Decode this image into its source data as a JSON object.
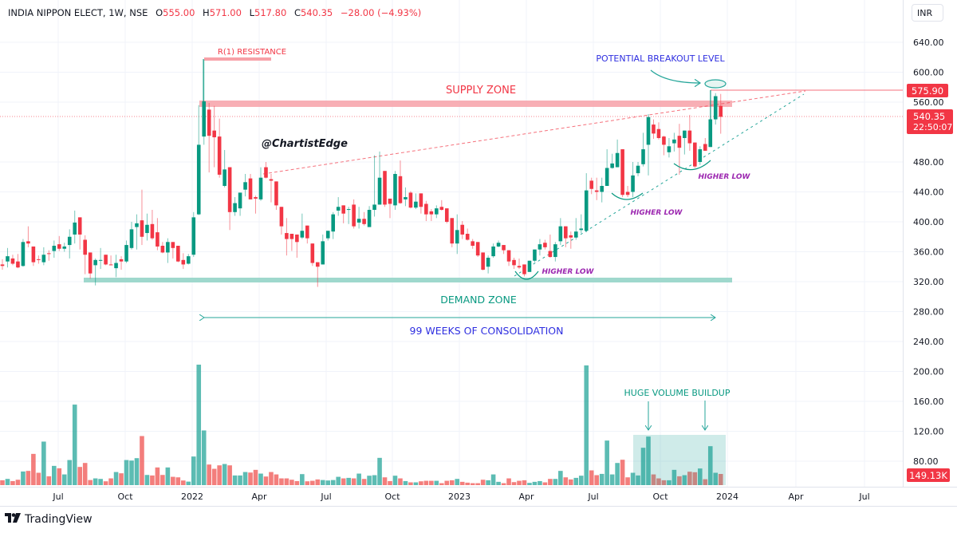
{
  "header": {
    "symbol": "INDIA NIPPON ELECT, 1W, NSE",
    "open_label": "O",
    "open": "555.00",
    "high_label": "H",
    "high": "571.00",
    "low_label": "L",
    "low": "517.80",
    "close_label": "C",
    "close": "540.35",
    "change": "−28.00 (−4.93%)"
  },
  "currency_button": "INR",
  "footer": {
    "brand": "TradingView",
    "logo_icon": "tradingview-logo-icon"
  },
  "price_tags": {
    "level": "575.90",
    "last_price": "540.35",
    "countdown": "22:50:07",
    "last_volume": "149.13K"
  },
  "annotations": {
    "resistance": "R(1) RESISTANCE",
    "supply_zone": "SUPPLY ZONE",
    "watermark": "@ChartistEdge",
    "breakout": "POTENTIAL BREAKOUT LEVEL",
    "higher_low_1": "HIGHER LOW",
    "higher_low_2": "HIGHER LOW",
    "higher_low_3": "HIGHER LOW",
    "demand_zone": "DEMAND ZONE",
    "consolidation": "99 WEEKS OF CONSOLIDATION",
    "volume_buildup": "HUGE VOLUME BUILDUP"
  },
  "colors": {
    "up": "#089981",
    "down": "#f23645",
    "volume_up": "#26a69a",
    "volume_down": "#ef5350",
    "supply_zone": "#f7a1a8",
    "demand_zone": "#9fd8cd",
    "text_blue": "#2f2fe0",
    "text_purple": "#9c27b0",
    "text_teal": "#089981"
  },
  "chart_data": {
    "type": "candlestick",
    "interval": "1W",
    "volume_unit": "K",
    "price_ticks": [
      "640.00",
      "600.00",
      "560.00",
      "480.00",
      "440.00",
      "400.00",
      "360.00",
      "320.00",
      "280.00",
      "240.00",
      "200.00",
      "160.00",
      "120.00",
      "80.00"
    ],
    "time_ticks": [
      "Jul",
      "Oct",
      "2022",
      "Apr",
      "Jul",
      "Oct",
      "2023",
      "Apr",
      "Jul",
      "Oct",
      "2024",
      "Apr",
      "Jul"
    ],
    "ohlc": [
      [
        343,
        350,
        336,
        341
      ],
      [
        347,
        365,
        339,
        354
      ],
      [
        351,
        356,
        342,
        344
      ],
      [
        347,
        357,
        338,
        339
      ],
      [
        341,
        377,
        340,
        373
      ],
      [
        374,
        394,
        366,
        371
      ],
      [
        367,
        367,
        341,
        346
      ],
      [
        350,
        355,
        344,
        349
      ],
      [
        346,
        366,
        342,
        356
      ],
      [
        358,
        362,
        348,
        357
      ],
      [
        361,
        375,
        352,
        368
      ],
      [
        370,
        381,
        361,
        364
      ],
      [
        364,
        372,
        360,
        367
      ],
      [
        369,
        390,
        351,
        380
      ],
      [
        383,
        415,
        371,
        399
      ],
      [
        406,
        406,
        363,
        383
      ],
      [
        376,
        382,
        330,
        356
      ],
      [
        359,
        359,
        324,
        331
      ],
      [
        342,
        351,
        315,
        349
      ],
      [
        348,
        365,
        337,
        349
      ],
      [
        356,
        356,
        342,
        343
      ],
      [
        343,
        355,
        342,
        342
      ],
      [
        338,
        356,
        326,
        345
      ],
      [
        350,
        354,
        336,
        347
      ],
      [
        347,
        375,
        345,
        369
      ],
      [
        365,
        400,
        363,
        390
      ],
      [
        393,
        410,
        363,
        398
      ],
      [
        402,
        443,
        369,
        380
      ],
      [
        385,
        411,
        375,
        396
      ],
      [
        397,
        416,
        376,
        378
      ],
      [
        386,
        405,
        362,
        367
      ],
      [
        368,
        373,
        358,
        359
      ],
      [
        359,
        378,
        345,
        373
      ],
      [
        373,
        373,
        351,
        365
      ],
      [
        368,
        368,
        346,
        347
      ],
      [
        349,
        358,
        337,
        343
      ],
      [
        344,
        357,
        343,
        354
      ],
      [
        356,
        413,
        353,
        406
      ],
      [
        410,
        556,
        409,
        503
      ],
      [
        514,
        617,
        503,
        561
      ],
      [
        550,
        559,
        466,
        515
      ],
      [
        522,
        555,
        473,
        513
      ],
      [
        514,
        538,
        459,
        463
      ],
      [
        448,
        496,
        446,
        470
      ],
      [
        473,
        473,
        389,
        413
      ],
      [
        413,
        433,
        408,
        425
      ],
      [
        418,
        439,
        408,
        439
      ],
      [
        443,
        464,
        434,
        453
      ],
      [
        458,
        464,
        430,
        430
      ],
      [
        433,
        435,
        411,
        431
      ],
      [
        430,
        473,
        428,
        459
      ],
      [
        473,
        480,
        458,
        459
      ],
      [
        457,
        464,
        426,
        455
      ],
      [
        454,
        454,
        416,
        422
      ],
      [
        420,
        420,
        383,
        394
      ],
      [
        385,
        405,
        355,
        377
      ],
      [
        384,
        384,
        361,
        377
      ],
      [
        383,
        383,
        352,
        373
      ],
      [
        379,
        411,
        377,
        388
      ],
      [
        395,
        395,
        371,
        378
      ],
      [
        371,
        371,
        341,
        345
      ],
      [
        346,
        346,
        313,
        340
      ],
      [
        343,
        383,
        343,
        374
      ],
      [
        378,
        388,
        375,
        388
      ],
      [
        387,
        413,
        377,
        410
      ],
      [
        415,
        433,
        408,
        420
      ],
      [
        422,
        422,
        398,
        411
      ],
      [
        416,
        420,
        397,
        417
      ],
      [
        423,
        430,
        391,
        394
      ],
      [
        399,
        420,
        391,
        404
      ],
      [
        404,
        413,
        395,
        397
      ],
      [
        393,
        421,
        393,
        416
      ],
      [
        416,
        489,
        407,
        423
      ],
      [
        423,
        494,
        423,
        459
      ],
      [
        468,
        468,
        420,
        423
      ],
      [
        431,
        431,
        405,
        424
      ],
      [
        422,
        468,
        416,
        464
      ],
      [
        461,
        482,
        424,
        425
      ],
      [
        430,
        446,
        421,
        433
      ],
      [
        439,
        441,
        418,
        419
      ],
      [
        419,
        438,
        417,
        427
      ],
      [
        438,
        438,
        411,
        420
      ],
      [
        424,
        428,
        401,
        410
      ],
      [
        414,
        417,
        401,
        410
      ],
      [
        410,
        422,
        405,
        418
      ],
      [
        420,
        429,
        415,
        416
      ],
      [
        418,
        418,
        398,
        400
      ],
      [
        405,
        405,
        366,
        371
      ],
      [
        371,
        410,
        357,
        389
      ],
      [
        396,
        401,
        377,
        383
      ],
      [
        384,
        391,
        375,
        376
      ],
      [
        374,
        377,
        364,
        368
      ],
      [
        373,
        373,
        353,
        355
      ],
      [
        359,
        359,
        335,
        336
      ],
      [
        340,
        355,
        331,
        352
      ],
      [
        354,
        371,
        352,
        367
      ],
      [
        367,
        375,
        366,
        372
      ],
      [
        369,
        369,
        357,
        362
      ],
      [
        362,
        362,
        341,
        347
      ],
      [
        349,
        352,
        337,
        342
      ],
      [
        341,
        351,
        337,
        339
      ],
      [
        343,
        343,
        327,
        330
      ],
      [
        333,
        348,
        333,
        348
      ],
      [
        348,
        363,
        346,
        363
      ],
      [
        363,
        377,
        355,
        370
      ],
      [
        372,
        376,
        363,
        366
      ],
      [
        361,
        383,
        352,
        353
      ],
      [
        353,
        373,
        347,
        370
      ],
      [
        374,
        405,
        369,
        394
      ],
      [
        394,
        394,
        366,
        378
      ],
      [
        382,
        387,
        364,
        379
      ],
      [
        379,
        405,
        376,
        387
      ],
      [
        389,
        410,
        385,
        391
      ],
      [
        388,
        465,
        386,
        442
      ],
      [
        455,
        459,
        437,
        444
      ],
      [
        442,
        459,
        429,
        440
      ],
      [
        440,
        459,
        426,
        448
      ],
      [
        448,
        497,
        448,
        472
      ],
      [
        472,
        491,
        471,
        478
      ],
      [
        473,
        510,
        473,
        492
      ],
      [
        497,
        497,
        433,
        436
      ],
      [
        440,
        448,
        433,
        436
      ],
      [
        440,
        480,
        433,
        462
      ],
      [
        465,
        480,
        461,
        475
      ],
      [
        477,
        519,
        474,
        497
      ],
      [
        503,
        544,
        462,
        540
      ],
      [
        530,
        537,
        511,
        518
      ],
      [
        524,
        533,
        510,
        512
      ],
      [
        514,
        515,
        489,
        503
      ],
      [
        493,
        512,
        486,
        501
      ],
      [
        505,
        519,
        494,
        510
      ],
      [
        515,
        531,
        463,
        499
      ],
      [
        512,
        522,
        490,
        522
      ],
      [
        522,
        543,
        495,
        505
      ],
      [
        506,
        506,
        472,
        474
      ],
      [
        480,
        501,
        476,
        497
      ],
      [
        504,
        512,
        495,
        495
      ],
      [
        500,
        576,
        500,
        537
      ],
      [
        537,
        572,
        530,
        568
      ],
      [
        555,
        571,
        517.8,
        540.35
      ]
    ],
    "volume": [
      65,
      83,
      54,
      72,
      182,
      190,
      417,
      165,
      581,
      118,
      257,
      225,
      143,
      335,
      1075,
      243,
      296,
      68,
      90,
      83,
      51,
      90,
      175,
      158,
      335,
      328,
      360,
      655,
      136,
      129,
      236,
      136,
      236,
      111,
      104,
      62,
      47,
      382,
      1608,
      730,
      275,
      218,
      264,
      282,
      264,
      129,
      129,
      175,
      168,
      204,
      154,
      115,
      175,
      143,
      90,
      90,
      72,
      54,
      147,
      51,
      58,
      76,
      68,
      62,
      68,
      111,
      90,
      97,
      90,
      154,
      83,
      126,
      133,
      364,
      104,
      54,
      126,
      90,
      54,
      37,
      37,
      51,
      58,
      58,
      58,
      26,
      58,
      65,
      83,
      44,
      33,
      26,
      26,
      72,
      65,
      143,
      44,
      26,
      90,
      40,
      58,
      65,
      30,
      44,
      54,
      37,
      83,
      83,
      190,
      104,
      76,
      97,
      126,
      1598,
      197,
      133,
      150,
      595,
      143,
      296,
      339,
      104,
      165,
      129,
      499,
      648,
      143,
      90,
      65,
      65,
      204,
      118,
      133,
      179,
      172,
      222,
      79,
      520,
      165,
      149.13
    ],
    "levels": {
      "resistance_line": 575.9,
      "last_price": 540.35
    },
    "grid": true,
    "price_scale": "right"
  }
}
